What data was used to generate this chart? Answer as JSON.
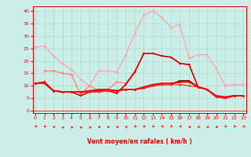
{
  "xlabel": "Vent moyen/en rafales ( km/h )",
  "background_color": "#cceee8",
  "grid_color": "#aaddcc",
  "x_ticks": [
    0,
    1,
    2,
    3,
    4,
    5,
    6,
    7,
    8,
    9,
    10,
    11,
    12,
    13,
    14,
    15,
    16,
    17,
    18,
    19,
    20,
    21,
    22,
    23
  ],
  "y_ticks": [
    0,
    5,
    10,
    15,
    20,
    25,
    30,
    35,
    40
  ],
  "ylim": [
    -1,
    42
  ],
  "xlim": [
    -0.3,
    23.3
  ],
  "series": [
    {
      "color": "#ffaaaa",
      "linewidth": 1.0,
      "marker": "D",
      "markersize": 2,
      "values": [
        25.5,
        26.0,
        22.0,
        19.0,
        16.5,
        12.5,
        10.0,
        16.0,
        16.0,
        15.5,
        22.5,
        31.0,
        38.5,
        40.0,
        37.5,
        33.5,
        34.5,
        21.0,
        22.5,
        22.5,
        17.0,
        10.0,
        10.5,
        10.5
      ]
    },
    {
      "color": "#ff8888",
      "linewidth": 1.0,
      "marker": "D",
      "markersize": 2,
      "values": [
        null,
        16.0,
        16.0,
        15.0,
        14.5,
        6.5,
        10.0,
        8.0,
        8.5,
        11.5,
        11.0,
        16.0,
        23.0,
        23.0,
        22.0,
        21.5,
        19.0,
        18.5,
        null,
        null,
        null,
        null,
        null,
        null
      ]
    },
    {
      "color": "#dd0000",
      "linewidth": 1.2,
      "marker": "s",
      "markersize": 2,
      "values": [
        11.0,
        11.5,
        8.0,
        7.5,
        7.5,
        6.0,
        7.5,
        8.0,
        8.0,
        7.0,
        10.5,
        15.5,
        23.0,
        23.0,
        22.0,
        21.5,
        19.0,
        18.5,
        9.5,
        8.5,
        5.5,
        5.0,
        6.0,
        6.0
      ]
    },
    {
      "color": "#880000",
      "linewidth": 1.2,
      "marker": "s",
      "markersize": 2,
      "values": [
        11.0,
        11.0,
        8.0,
        7.5,
        7.5,
        7.5,
        7.5,
        7.5,
        8.0,
        8.0,
        8.5,
        8.5,
        9.0,
        10.0,
        10.5,
        10.5,
        12.0,
        12.0,
        9.5,
        8.5,
        5.5,
        5.0,
        6.0,
        6.0
      ]
    },
    {
      "color": "#ff4444",
      "linewidth": 1.0,
      "marker": "o",
      "markersize": 2,
      "values": [
        11.0,
        11.0,
        8.0,
        7.5,
        7.5,
        7.5,
        7.5,
        7.5,
        8.0,
        8.0,
        8.5,
        8.5,
        9.0,
        10.0,
        10.5,
        10.5,
        10.5,
        10.0,
        9.5,
        8.5,
        5.5,
        5.0,
        6.0,
        6.0
      ]
    },
    {
      "color": "#ff0000",
      "linewidth": 1.2,
      "marker": "^",
      "markersize": 2,
      "values": [
        11.0,
        11.0,
        8.0,
        7.5,
        7.5,
        7.5,
        8.0,
        8.5,
        8.5,
        8.0,
        8.5,
        8.5,
        9.5,
        10.5,
        11.0,
        11.0,
        11.5,
        11.5,
        9.5,
        8.5,
        6.0,
        5.5,
        6.0,
        6.0
      ]
    }
  ],
  "wind_dirs": [
    225,
    225,
    270,
    315,
    315,
    315,
    315,
    270,
    270,
    270,
    270,
    225,
    225,
    225,
    225,
    225,
    225,
    270,
    270,
    270,
    270,
    225,
    225,
    225
  ]
}
